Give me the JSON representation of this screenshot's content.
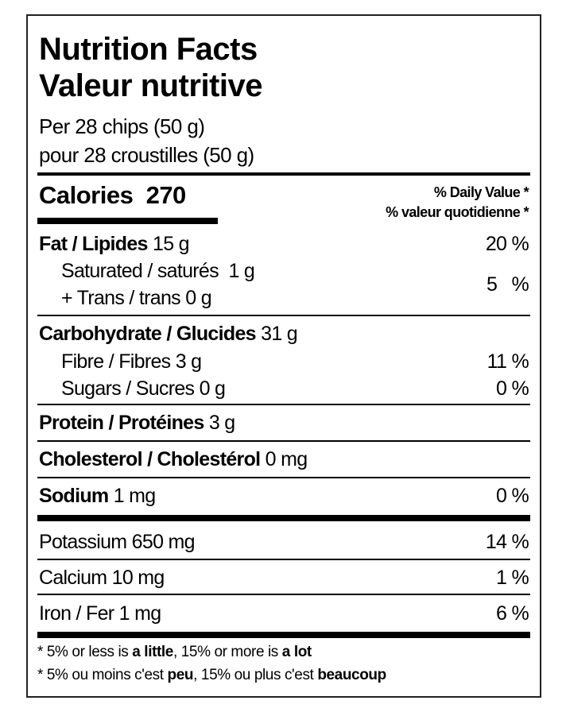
{
  "title_en": "Nutrition Facts",
  "title_fr": "Valeur nutritive",
  "serving_en": "Per 28 chips (50 g)",
  "serving_fr": "pour 28 croustilles (50 g)",
  "calories": {
    "label": "Calories",
    "value": "270"
  },
  "daily_value_en": "% Daily Value *",
  "daily_value_fr": "% valeur quotidienne *",
  "nutrients": {
    "fat": {
      "name": "Fat / Lipides",
      "amount": "15 g",
      "dv": "20 %"
    },
    "saturated": {
      "name": "Saturated / saturés",
      "amount": "1 g"
    },
    "trans": {
      "name": "+ Trans / trans",
      "amount": "0 g"
    },
    "sat_trans_dv": "5 %",
    "carb": {
      "name": "Carbohydrate / Glucides",
      "amount": "31 g"
    },
    "fibre": {
      "name": "Fibre / Fibres",
      "amount": "3 g",
      "dv": "11 %"
    },
    "sugars": {
      "name": "Sugars / Sucres",
      "amount": "0 g",
      "dv": "0 %"
    },
    "protein": {
      "name": "Protein / Protéines",
      "amount": "3 g"
    },
    "cholesterol": {
      "name": "Cholesterol / Cholestérol",
      "amount": "0 mg"
    },
    "sodium": {
      "name": "Sodium",
      "amount": "1 mg",
      "dv": "0 %"
    },
    "potassium": {
      "name": "Potassium",
      "amount": "650 mg",
      "dv": "14 %"
    },
    "calcium": {
      "name": "Calcium",
      "amount": "10 mg",
      "dv": "1 %"
    },
    "iron": {
      "name": "Iron / Fer",
      "amount": "1 mg",
      "dv": "6 %"
    }
  },
  "footnote_en": {
    "a": "* 5% or less is ",
    "b": "a little",
    "c": ", 15% or more is ",
    "d": "a lot"
  },
  "footnote_fr": {
    "a": "* 5% ou moins c'est ",
    "b": "peu",
    "c": ", 15% ou plus c'est ",
    "d": "beaucoup"
  }
}
